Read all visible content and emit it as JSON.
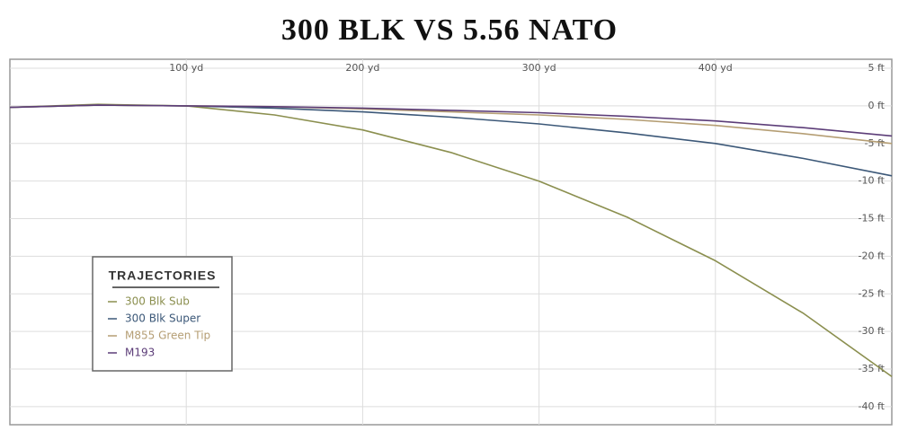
{
  "chart_data": {
    "type": "line",
    "title": "300 BLK VS 5.56 NATO",
    "x": [
      0,
      50,
      100,
      150,
      200,
      250,
      300,
      350,
      400,
      450,
      500
    ],
    "series": [
      {
        "name": "300 Blk Sub",
        "color": "#8b8f4f",
        "values": [
          -0.2,
          0.2,
          0,
          -1.2,
          -3.2,
          -6.2,
          -10,
          -14.8,
          -20.6,
          -27.6,
          -36
        ]
      },
      {
        "name": "300 Blk Super",
        "color": "#3c5878",
        "values": [
          -0.2,
          0.1,
          0,
          -0.3,
          -0.8,
          -1.5,
          -2.4,
          -3.6,
          -5,
          -7,
          -9.3
        ]
      },
      {
        "name": "M855 Green Tip",
        "color": "#b59e74",
        "values": [
          -0.2,
          0.1,
          0,
          -0.1,
          -0.4,
          -0.8,
          -1.2,
          -1.8,
          -2.6,
          -3.7,
          -5
        ]
      },
      {
        "name": "M193",
        "color": "#5c3d78",
        "values": [
          -0.2,
          0.1,
          0,
          -0.1,
          -0.3,
          -0.6,
          -0.9,
          -1.4,
          -2,
          -2.9,
          -4
        ]
      }
    ],
    "xlim": [
      0,
      500
    ],
    "xticks": [
      {
        "value": 100,
        "label": "100 yd"
      },
      {
        "value": 200,
        "label": "200 yd"
      },
      {
        "value": 300,
        "label": "300 yd"
      },
      {
        "value": 400,
        "label": "400 yd"
      }
    ],
    "ylim": [
      -42.4,
      6.2
    ],
    "yticks": [
      {
        "value": 5,
        "label": "5 ft"
      },
      {
        "value": 0,
        "label": "0 ft"
      },
      {
        "value": -5,
        "label": "-5 ft"
      },
      {
        "value": -10,
        "label": "-10 ft"
      },
      {
        "value": -15,
        "label": "-15 ft"
      },
      {
        "value": -20,
        "label": "-20 ft"
      },
      {
        "value": -25,
        "label": "-25 ft"
      },
      {
        "value": -30,
        "label": "-30 ft"
      },
      {
        "value": -35,
        "label": "-35 ft"
      },
      {
        "value": -40,
        "label": "-40 ft"
      }
    ],
    "grid": true,
    "legend_title": "TRAJECTORIES",
    "legend_position": "lower left"
  }
}
